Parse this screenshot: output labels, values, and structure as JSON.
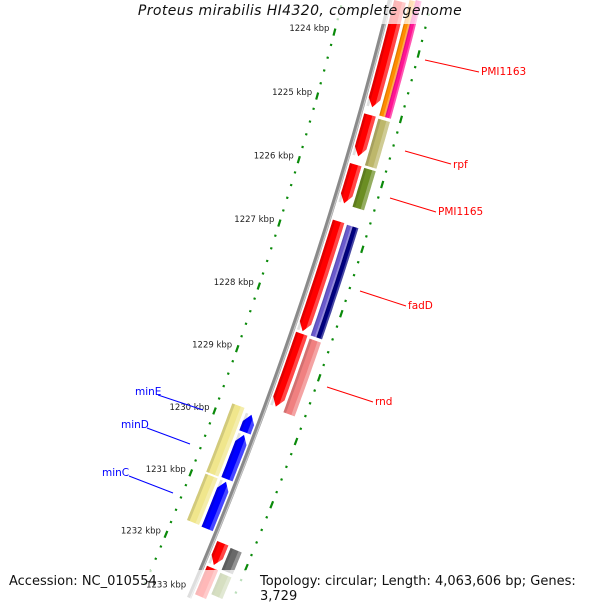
{
  "title": "Proteus mirabilis HI4320, complete genome",
  "footer": {
    "accession": "Accession: NC_010554",
    "summary": "Topology: circular; Length: 4,063,606 bp; Genes: 3,729"
  },
  "colors": {
    "backbone": "#8a8a8a",
    "tick": "#0a8a0a",
    "forward_label": "#ff0000",
    "reverse_label": "#0000ff"
  },
  "ruler": {
    "unit": "kbp",
    "ticks": [
      {
        "kbp": 1224,
        "label": "1224 kbp"
      },
      {
        "kbp": 1225,
        "label": "1225 kbp"
      },
      {
        "kbp": 1226,
        "label": "1226 kbp"
      },
      {
        "kbp": 1227,
        "label": "1227 kbp"
      },
      {
        "kbp": 1228,
        "label": "1228 kbp"
      },
      {
        "kbp": 1229,
        "label": "1229 kbp"
      },
      {
        "kbp": 1230,
        "label": "1230 kbp"
      },
      {
        "kbp": 1231,
        "label": "1231 kbp"
      },
      {
        "kbp": 1232,
        "label": "1232 kbp"
      },
      {
        "kbp": 1233,
        "label": "1233 kbp"
      }
    ]
  },
  "features": [
    {
      "track": "fwd_cds",
      "start": 1223.0,
      "end": 1224.94,
      "color": "#ff0000",
      "arrow": true
    },
    {
      "track": "fwd_cog_a",
      "start": 1223.0,
      "end": 1225.03,
      "color": "#ff8c00"
    },
    {
      "track": "fwd_cog_b",
      "start": 1223.0,
      "end": 1225.03,
      "color": "#ff1493"
    },
    {
      "track": "fwd_cds",
      "start": 1225.06,
      "end": 1225.7,
      "color": "#ff0000",
      "arrow": true
    },
    {
      "track": "fwd_cog",
      "start": 1225.08,
      "end": 1225.8,
      "color": "#bdb76b"
    },
    {
      "track": "fwd_cds",
      "start": 1225.83,
      "end": 1226.43,
      "color": "#ff0000",
      "arrow": true
    },
    {
      "track": "fwd_cog",
      "start": 1225.84,
      "end": 1226.44,
      "color": "#6b8e23"
    },
    {
      "track": "fwd_cds",
      "start": 1226.71,
      "end": 1228.43,
      "color": "#ff0000",
      "arrow": true
    },
    {
      "track": "fwd_cog_a",
      "start": 1226.72,
      "end": 1228.45,
      "color": "#6a5acd"
    },
    {
      "track": "fwd_cog_b",
      "start": 1226.72,
      "end": 1228.45,
      "color": "#000080"
    },
    {
      "track": "fwd_cds",
      "start": 1228.47,
      "end": 1229.62,
      "color": "#ff0000",
      "arrow": true
    },
    {
      "track": "fwd_cog",
      "start": 1228.5,
      "end": 1229.66,
      "color": "#f08080"
    },
    {
      "track": "rev_cds",
      "start": 1229.86,
      "end": 1230.14,
      "color": "#0000ff",
      "arrow": true
    },
    {
      "track": "rev_cds",
      "start": 1230.18,
      "end": 1230.89,
      "color": "#0000ff",
      "arrow": true
    },
    {
      "track": "rev_cds",
      "start": 1230.93,
      "end": 1231.69,
      "color": "#0000ff",
      "arrow": true
    },
    {
      "track": "rev_cog",
      "start": 1229.8,
      "end": 1230.9,
      "color": "#f0e68c"
    },
    {
      "track": "rev_cog",
      "start": 1230.93,
      "end": 1231.68,
      "color": "#f0e68c"
    },
    {
      "track": "fwd_cds",
      "start": 1231.8,
      "end": 1232.15,
      "color": "#ff0000",
      "arrow": true
    },
    {
      "track": "fwd_cog",
      "start": 1231.82,
      "end": 1232.17,
      "color": "#696969"
    },
    {
      "track": "fwd_cds",
      "start": 1232.2,
      "end": 1234.0,
      "color": "#ff0000",
      "arrow": true
    },
    {
      "track": "fwd_cog",
      "start": 1232.22,
      "end": 1234.0,
      "color": "#6b8e23"
    }
  ],
  "gene_labels": {
    "pmi1163": "PMI1163",
    "rpf": "rpf",
    "pmi1165": "PMI1165",
    "fadd": "fadD",
    "rnd": "rnd",
    "mine": "minE",
    "mind": "minD",
    "minc": "minC"
  }
}
